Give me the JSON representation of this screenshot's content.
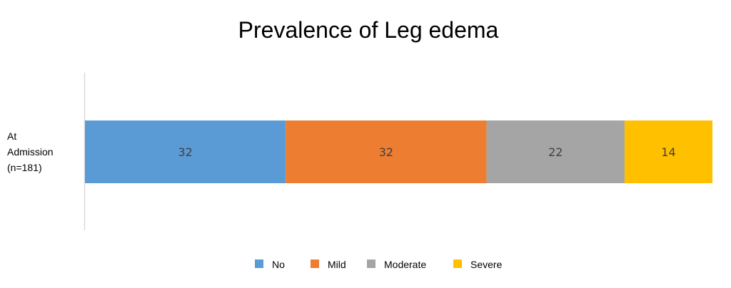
{
  "chart_data": {
    "type": "bar",
    "orientation": "horizontal",
    "stacked": true,
    "title": "Prevalence of Leg edema",
    "xlabel": "",
    "ylabel": "",
    "categories": [
      "At Admission (n=181)"
    ],
    "category_lines": [
      "At",
      "Admission",
      "(n=181)"
    ],
    "series": [
      {
        "name": "No",
        "values": [
          32
        ],
        "color": "#5B9BD5"
      },
      {
        "name": "Mild",
        "values": [
          32
        ],
        "color": "#ED7D31"
      },
      {
        "name": "Moderate",
        "values": [
          22
        ],
        "color": "#A5A5A5"
      },
      {
        "name": "Severe",
        "values": [
          14
        ],
        "color": "#FFC000"
      }
    ],
    "xlim": [
      0,
      100
    ],
    "grid": false,
    "legend_position": "bottom",
    "axis_color": "#D9D9D9",
    "data_label_color": "#404040"
  }
}
